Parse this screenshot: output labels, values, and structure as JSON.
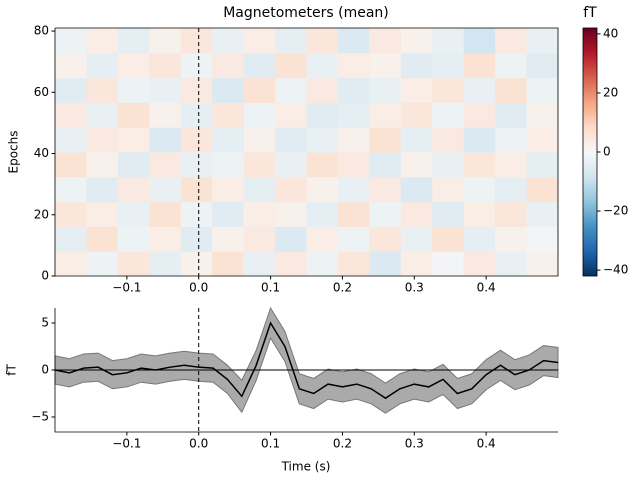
{
  "chart_data": [
    {
      "type": "heatmap",
      "title": "Magnetometers (mean)",
      "ylabel": "Epochs",
      "xlim": [
        -0.2,
        0.5
      ],
      "ylim": [
        0,
        81
      ],
      "xticks": [
        {
          "value": -0.1,
          "label": "−0.1"
        },
        {
          "value": 0,
          "label": "0.0"
        },
        0.1,
        0.2,
        0.3,
        0.4
      ],
      "yticks": [
        0,
        20,
        40,
        60,
        80
      ],
      "event_line": 0,
      "values": [
        [
          3,
          -2,
          5,
          -4,
          2,
          6,
          -3,
          4,
          -2,
          5,
          -6,
          3,
          -1,
          4,
          -3,
          2
        ],
        [
          -4,
          6,
          -2,
          3,
          -5,
          2,
          4,
          -6,
          3,
          -2,
          5,
          -3,
          6,
          -4,
          2,
          -1
        ],
        [
          5,
          3,
          -3,
          6,
          -2,
          -5,
          3,
          2,
          -4,
          6,
          -2,
          4,
          -5,
          3,
          5,
          -3
        ],
        [
          -2,
          -5,
          4,
          -3,
          6,
          3,
          -4,
          5,
          2,
          -3,
          4,
          -6,
          3,
          -2,
          -4,
          6
        ],
        [
          6,
          2,
          -5,
          4,
          -3,
          -2,
          5,
          -3,
          6,
          4,
          -5,
          2,
          -3,
          5,
          3,
          -4
        ],
        [
          -3,
          4,
          3,
          -6,
          5,
          -4,
          2,
          -5,
          -3,
          2,
          6,
          -4,
          4,
          -6,
          -2,
          3
        ],
        [
          4,
          -3,
          6,
          2,
          -4,
          5,
          -2,
          3,
          -5,
          -4,
          3,
          5,
          -2,
          4,
          -5,
          2
        ],
        [
          -5,
          5,
          -2,
          -3,
          4,
          -6,
          6,
          -2,
          4,
          -5,
          -3,
          3,
          5,
          -3,
          6,
          -2
        ],
        [
          2,
          -4,
          3,
          5,
          -2,
          4,
          -5,
          6,
          -3,
          3,
          2,
          -5,
          -4,
          6,
          -2,
          -5
        ],
        [
          -2,
          3,
          -4,
          2,
          5,
          -3,
          3,
          -4,
          5,
          -6,
          4,
          2,
          -3,
          -8,
          4,
          -3
        ]
      ],
      "colorbar": {
        "label": "fT",
        "clim": [
          -42,
          42
        ],
        "ticks": [
          {
            "value": -40,
            "label": "−40"
          },
          {
            "value": -20,
            "label": "−20"
          },
          0,
          20,
          40
        ],
        "colormap": [
          "#053061",
          "#2166ac",
          "#4393c3",
          "#92c5de",
          "#d1e5f0",
          "#f7f7f7",
          "#fddbc7",
          "#f4a582",
          "#d6604d",
          "#b2182b",
          "#67001f"
        ]
      }
    },
    {
      "type": "line",
      "xlabel": "Time (s)",
      "ylabel": "fT",
      "xlim": [
        -0.2,
        0.5
      ],
      "ylim": [
        -6.6,
        6.6
      ],
      "xticks": [
        {
          "value": -0.1,
          "label": "−0.1"
        },
        {
          "value": 0,
          "label": "0.0"
        },
        0.1,
        0.2,
        0.3,
        0.4
      ],
      "yticks": [
        {
          "value": -5,
          "label": "−5"
        },
        0,
        5
      ],
      "event_line": 0,
      "zero_line": 0,
      "x": [
        -0.2,
        -0.18,
        -0.16,
        -0.14,
        -0.12,
        -0.1,
        -0.08,
        -0.06,
        -0.04,
        -0.02,
        0,
        0.02,
        0.04,
        0.06,
        0.08,
        0.1,
        0.12,
        0.14,
        0.16,
        0.18,
        0.2,
        0.22,
        0.24,
        0.26,
        0.28,
        0.3,
        0.32,
        0.34,
        0.36,
        0.38,
        0.4,
        0.42,
        0.44,
        0.46,
        0.48,
        0.5
      ],
      "values": [
        0,
        -0.3,
        0.2,
        0.3,
        -0.5,
        -0.3,
        0.2,
        0,
        0.3,
        0.5,
        0.3,
        0.2,
        -1,
        -2.8,
        0.5,
        5,
        2.5,
        -2,
        -2.5,
        -1.5,
        -1.8,
        -1.5,
        -2,
        -3,
        -2,
        -1.5,
        -1.8,
        -1,
        -2.5,
        -2,
        -0.5,
        0.5,
        -0.5,
        0,
        1,
        0.8
      ],
      "lower": [
        -1.5,
        -1.8,
        -1.3,
        -1.2,
        -2,
        -1.8,
        -1.3,
        -1.5,
        -1.2,
        -1,
        -1.2,
        -1.3,
        -2.5,
        -4.5,
        -1.1,
        3.4,
        0.9,
        -3.6,
        -4.1,
        -3.1,
        -3.4,
        -3.1,
        -3.6,
        -4.6,
        -3.6,
        -3.1,
        -3.4,
        -2.6,
        -4.1,
        -3.6,
        -2.1,
        -1.1,
        -2.1,
        -1.6,
        -0.6,
        -0.8
      ],
      "upper": [
        1.5,
        1.2,
        1.7,
        1.8,
        1,
        1.2,
        1.7,
        1.5,
        1.8,
        2,
        1.8,
        1.7,
        0.5,
        -1.1,
        2.1,
        6.6,
        4.1,
        -0.4,
        -0.9,
        0.1,
        -0.2,
        0.1,
        -0.4,
        -1.4,
        -0.4,
        0.1,
        -0.2,
        0.6,
        -0.9,
        -0.4,
        1.1,
        2.1,
        1.1,
        1.6,
        2.6,
        2.4
      ],
      "color": "#000000",
      "band_color": "#aaaaaa"
    }
  ]
}
